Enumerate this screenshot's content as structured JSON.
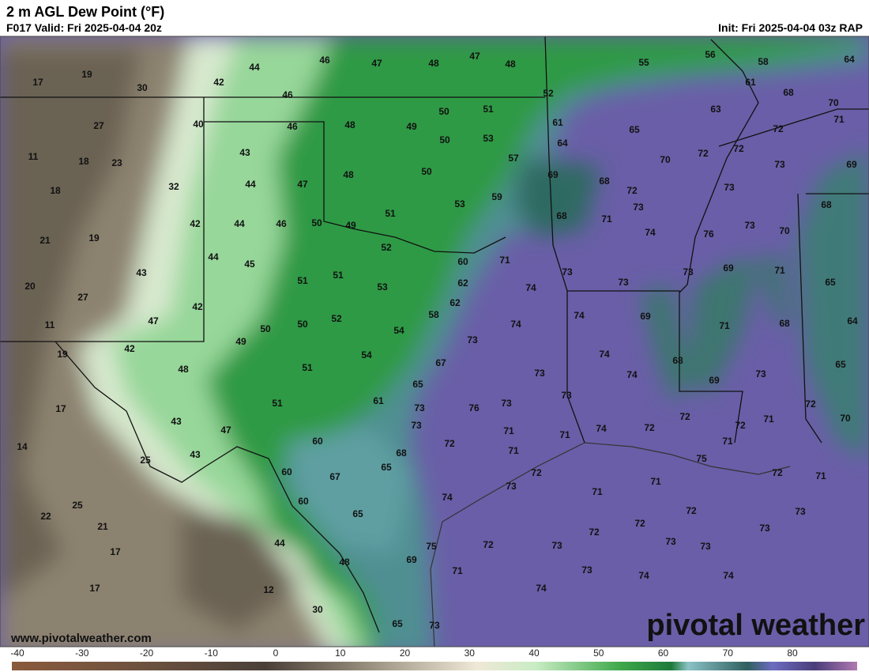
{
  "header": {
    "title": "2 m AGL Dew Point (°F)",
    "valid": "F017 Valid: Fri 2025-04-04 20z",
    "init": "Init: Fri 2025-04-04 03z RAP"
  },
  "map_labels": [
    17,
    19,
    30,
    42,
    44,
    46,
    47,
    48,
    47,
    48,
    55,
    56,
    58,
    64,
    46,
    52,
    61,
    68,
    70,
    27,
    40,
    46,
    48,
    49,
    50,
    51,
    61,
    65,
    63,
    72,
    71,
    11,
    18,
    23,
    43,
    50,
    53,
    64,
    57,
    70,
    72,
    72,
    73,
    69,
    18,
    32,
    44,
    47,
    48,
    50,
    69,
    68,
    72,
    73,
    68,
    42,
    44,
    46,
    50,
    49,
    51,
    53,
    59,
    68,
    71,
    73,
    74,
    76,
    73,
    70,
    21,
    19,
    44,
    45,
    52,
    60,
    71,
    73,
    73,
    73,
    69,
    71,
    43,
    51,
    51,
    53,
    62,
    74,
    65,
    20,
    27,
    62,
    74,
    69,
    71,
    68,
    64,
    11,
    47,
    42,
    50,
    50,
    52,
    54,
    58,
    74,
    73,
    19,
    42,
    49,
    54,
    67,
    74,
    68,
    65,
    48,
    51,
    73,
    74,
    73,
    69,
    17,
    51,
    61,
    65,
    73,
    76,
    73,
    73,
    72,
    71,
    72,
    70,
    43,
    47,
    73,
    71,
    71,
    74,
    72,
    72,
    71,
    14,
    60,
    72,
    71,
    75,
    43,
    25,
    68,
    65,
    67,
    60,
    72,
    71,
    72,
    71,
    25,
    60,
    73,
    74,
    71,
    72,
    73,
    22,
    21,
    65,
    72,
    73,
    17,
    44,
    75,
    72,
    73,
    72,
    73,
    73,
    48,
    69,
    71,
    73,
    74,
    74,
    17,
    12,
    74,
    30,
    65,
    73
  ],
  "website": "www.pivotalweather.com",
  "logo": "pivotal weather",
  "colorbar_ticks": [
    -40,
    -30,
    -20,
    -10,
    0,
    10,
    20,
    30,
    40,
    50,
    60,
    70,
    80
  ]
}
